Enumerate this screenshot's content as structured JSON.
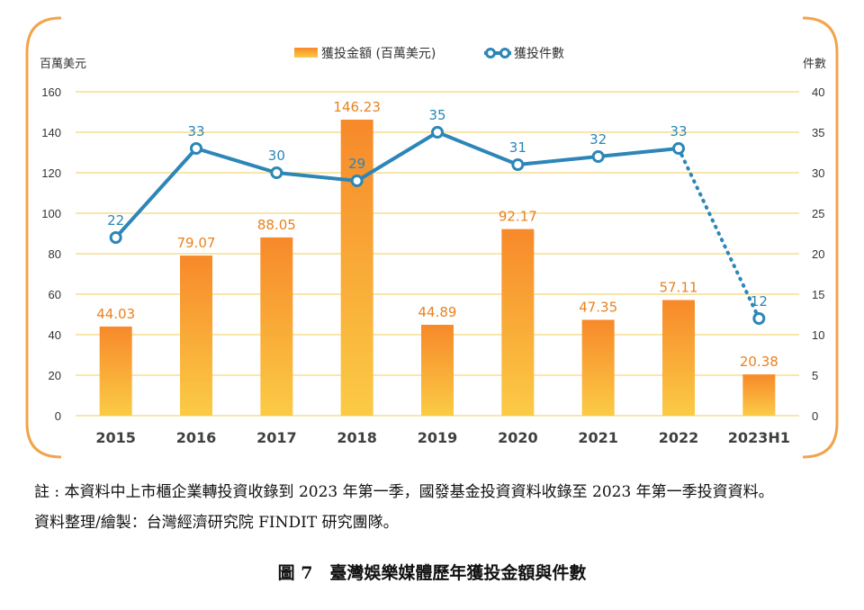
{
  "chart_data": {
    "type": "bar",
    "categories": [
      "2015",
      "2016",
      "2017",
      "2018",
      "2019",
      "2020",
      "2021",
      "2022",
      "2023H1"
    ],
    "series": [
      {
        "name": "獲投金額 (百萬美元)",
        "type": "bar",
        "axis": "left",
        "values": [
          44.03,
          79.07,
          88.05,
          146.23,
          44.89,
          92.17,
          47.35,
          57.11,
          20.38
        ],
        "labels": [
          "44.03",
          "79.07",
          "88.05",
          "146.23",
          "44.89",
          "92.17",
          "47.35",
          "57.11",
          "20.38"
        ]
      },
      {
        "name": "獲投件數",
        "type": "line",
        "axis": "right",
        "values": [
          22,
          33,
          30,
          29,
          35,
          31,
          32,
          33,
          12
        ],
        "labels": [
          "22",
          "33",
          "30",
          "29",
          "35",
          "31",
          "32",
          "33",
          "12"
        ],
        "dotted_last_segment": true
      }
    ],
    "y_left": {
      "label": "百萬美元",
      "ylim": [
        0,
        160
      ],
      "ticks": [
        "0",
        "20",
        "40",
        "60",
        "80",
        "100",
        "120",
        "140",
        "160"
      ]
    },
    "y_right": {
      "label": "件數",
      "ylim": [
        0,
        40
      ],
      "ticks": [
        "0",
        "5",
        "10",
        "15",
        "20",
        "25",
        "30",
        "35",
        "40"
      ]
    },
    "grid": true,
    "legend_position": "top-center"
  },
  "colors": {
    "bar_top": "#F7892A",
    "bar_bottom": "#FBCB45",
    "bar_label": "#E8821F",
    "line": "#2C86B8",
    "line_label": "#2C86B8",
    "grid": "#F5D77A",
    "frame": "#F2A44A",
    "axis_text": "#333333",
    "category_text": "#404040"
  },
  "notes": {
    "line1": "註 : 本資料中上市櫃企業轉投資收錄到 2023 年第一季，國發基金投資資料收錄至 2023 年第一季投資資料。",
    "line2": "資料整理/繪製：台灣經濟研究院 FINDIT 研究團隊。"
  },
  "caption": "圖 7　臺灣娛樂媒體歷年獲投金額與件數"
}
